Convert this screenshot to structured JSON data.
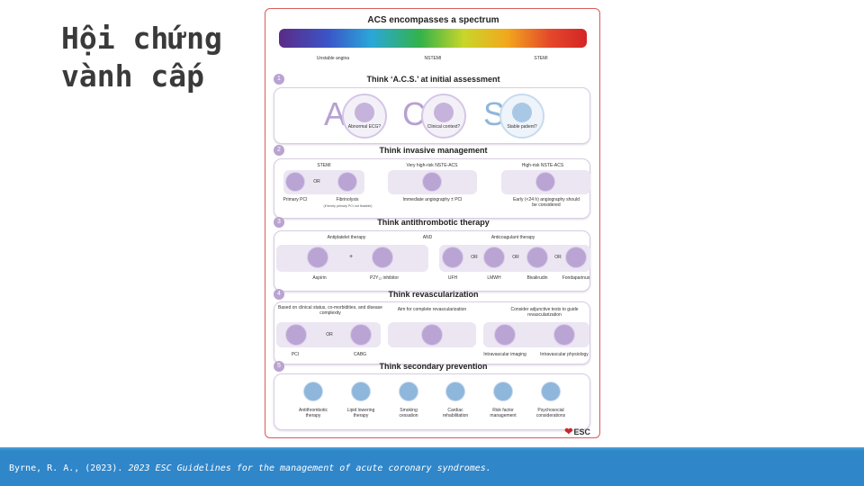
{
  "slide": {
    "title": "Hội chứng vành cấp",
    "citation_prefix": "Byrne, R. A., (2023). ",
    "citation_italic": "2023 ESC Guidelines for the management of acute coronary syndromes."
  },
  "infographic": {
    "header_title": "ACS encompasses a spectrum",
    "spectrum_labels": [
      "Unstable angina",
      "NSTEMI",
      "STEMI"
    ],
    "brand": "ESC",
    "colors": {
      "primary_purple": "#b9a4d4",
      "light_purple": "#ece6f3",
      "frame_red": "#d85a5a",
      "footer_blue": "#2f86c9"
    },
    "step1": {
      "number": "1",
      "title": "Think ‘A.C.S.’ at initial assessment",
      "items": [
        {
          "letter": "A",
          "label": "Abnormal ECG?",
          "icon": "ecg-icon"
        },
        {
          "letter": "C",
          "label": "Clinical context?",
          "icon": "clipboard-icon"
        },
        {
          "letter": "S",
          "label": "Stable patient?",
          "icon": "stethoscope-icon"
        }
      ]
    },
    "step2": {
      "number": "2",
      "title": "Think invasive management",
      "groups": [
        {
          "heading": "STEMI",
          "items": [
            "Primary PCI",
            "Fibrinolysis"
          ],
          "connector": "OR",
          "note": "(if timely primary PCI not feasible)"
        },
        {
          "heading": "Very high-risk NSTE-ACS",
          "items": [
            "Immediate angiography ± PCI"
          ]
        },
        {
          "heading": "High-risk NSTE-ACS",
          "items": [
            "Early (<24 h) angiography should be considered"
          ]
        }
      ]
    },
    "step3": {
      "number": "3",
      "title": "Think antithrombotic therapy",
      "antiplatelet_heading": "Antiplatelet therapy",
      "and_label": "AND",
      "anticoagulant_heading": "Anticoagulant therapy",
      "antiplatelet_items": [
        "Aspirin",
        "P2Y₁₂ inhibitor"
      ],
      "plus": "+",
      "anticoagulant_items": [
        "UFH",
        "LMWH",
        "Bivalirudin",
        "Fondaparinux"
      ],
      "connector": "OR"
    },
    "step4": {
      "number": "4",
      "title": "Think revascularization",
      "groups": [
        {
          "heading": "Based on clinical status, co-morbidities, and disease complexity",
          "items": [
            "PCI",
            "CABG"
          ],
          "connector": "OR"
        },
        {
          "heading": "Aim for complete revascularization",
          "items": []
        },
        {
          "heading": "Consider adjunctive tests to guide revascularization",
          "items": [
            "Intravascular imaging",
            "Intravascular physiology"
          ]
        }
      ]
    },
    "step5": {
      "number": "5",
      "title": "Think secondary prevention",
      "items": [
        "Antithrombotic therapy",
        "Lipid lowering therapy",
        "Smoking cessation",
        "Cardiac rehabilitation",
        "Risk factor management",
        "Psychosocial considerations"
      ]
    }
  }
}
